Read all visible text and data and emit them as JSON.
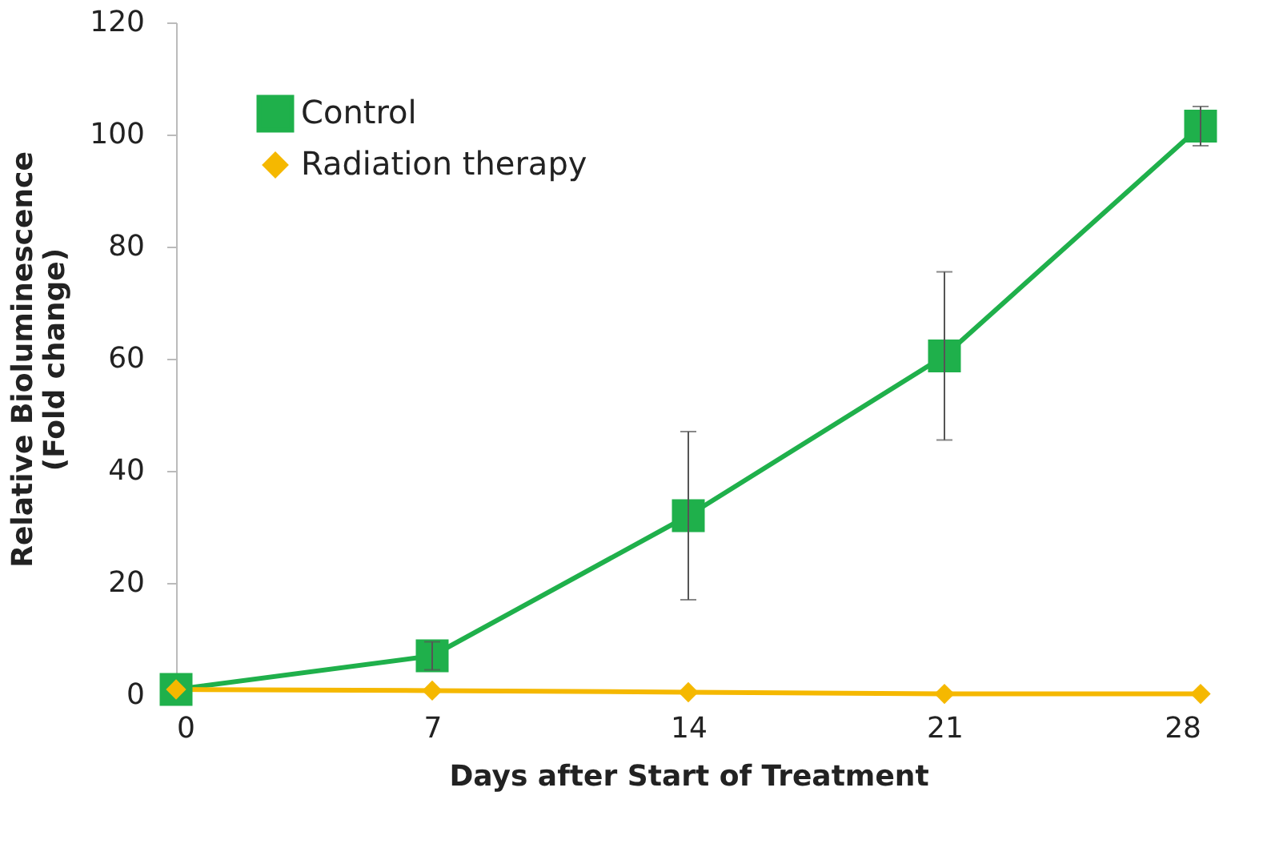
{
  "chart_data": {
    "type": "line",
    "xlabel": "Days after Start of Treatment",
    "ylabel": "Relative Bioluminescence\n(Fold change)",
    "x": [
      0,
      7,
      14,
      21,
      28
    ],
    "xlim": [
      0,
      28
    ],
    "xticks": [
      0,
      7,
      14,
      21,
      28
    ],
    "ylim": [
      0,
      120
    ],
    "yticks": [
      0,
      20,
      40,
      60,
      80,
      100,
      120
    ],
    "grid": false,
    "legend": "top left",
    "series": [
      {
        "name": "Control",
        "color": "#1fb04b",
        "marker": "square",
        "values": [
          1,
          7,
          32,
          60.5,
          101.5
        ],
        "errors": [
          null,
          2.5,
          15,
          15,
          3.5
        ]
      },
      {
        "name": "Radiation therapy",
        "color": "#f5b800",
        "marker": "diamond",
        "values": [
          1,
          0.8,
          0.5,
          0.2,
          0.2
        ]
      }
    ]
  }
}
